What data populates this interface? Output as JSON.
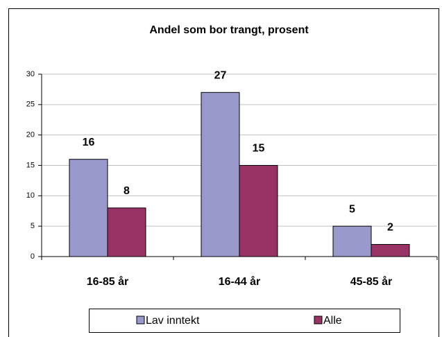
{
  "chart_data": {
    "type": "bar",
    "title": "Andel som bor trangt, prosent",
    "categories": [
      "16-85 år",
      "16-44 år",
      "45-85 år"
    ],
    "series": [
      {
        "name": "Lav inntekt",
        "color": "#9999cc",
        "values": [
          16,
          27,
          5
        ]
      },
      {
        "name": "Alle",
        "color": "#993366",
        "values": [
          8,
          15,
          2
        ]
      }
    ],
    "ylim": [
      0,
      30
    ],
    "yticks": [
      0,
      5,
      10,
      15,
      20,
      25,
      30
    ],
    "grid": true,
    "legend": "bottom"
  }
}
